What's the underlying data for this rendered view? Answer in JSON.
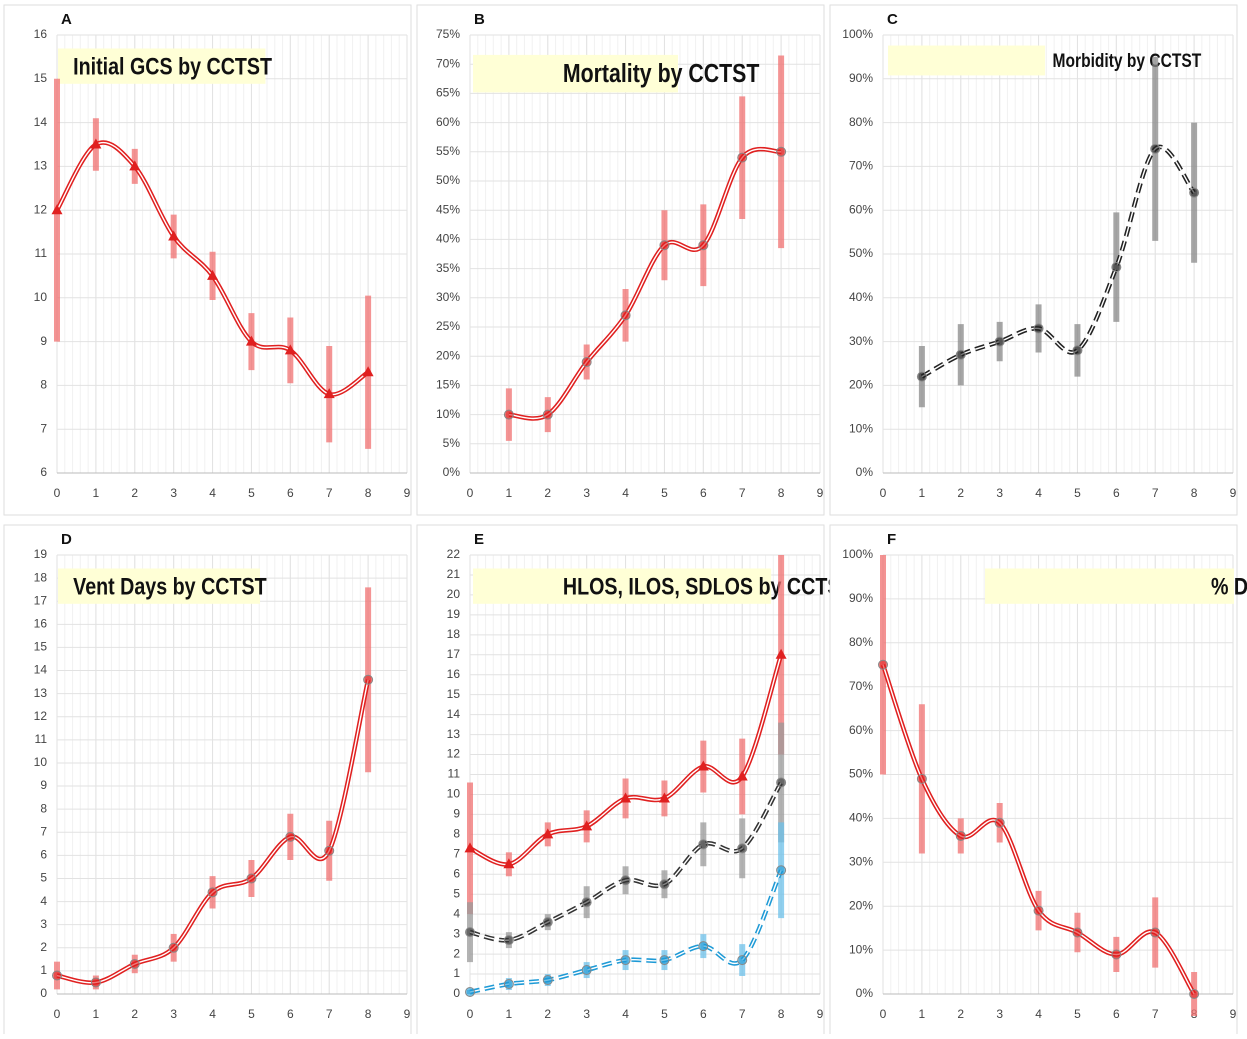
{
  "chart_data": [
    {
      "type": "line",
      "panel": "A",
      "title": "Initial GCS by CCTST",
      "grid": true,
      "x": [
        0,
        1,
        2,
        3,
        4,
        5,
        6,
        7,
        8
      ],
      "xlim": [
        0,
        9
      ],
      "xticks": [
        0,
        1,
        2,
        3,
        4,
        5,
        6,
        7,
        8,
        9
      ],
      "ylim": [
        6,
        16
      ],
      "yticks": [
        6,
        7,
        8,
        9,
        10,
        11,
        12,
        13,
        14,
        15,
        16
      ],
      "series": [
        {
          "color": "#e02020",
          "error_color": "#f07070",
          "marker": "triangle",
          "dash": false,
          "values": [
            12.0,
            13.5,
            13.0,
            11.4,
            10.5,
            9.0,
            8.8,
            7.8,
            8.3
          ],
          "errors": [
            3.0,
            0.6,
            0.4,
            0.5,
            0.55,
            0.65,
            0.75,
            1.1,
            1.75
          ]
        }
      ]
    },
    {
      "type": "line",
      "panel": "B",
      "title": "Mortality by CCTST",
      "grid": true,
      "x": [
        1,
        2,
        3,
        4,
        5,
        6,
        7,
        8
      ],
      "xlim": [
        0,
        9
      ],
      "xticks": [
        0,
        1,
        2,
        3,
        4,
        5,
        6,
        7,
        8,
        9
      ],
      "ylim": [
        0,
        75
      ],
      "yticks": [
        {
          "value": 0,
          "label": "0%"
        },
        {
          "value": 5,
          "label": "5%"
        },
        {
          "value": 10,
          "label": "10%"
        },
        {
          "value": 15,
          "label": "15%"
        },
        {
          "value": 20,
          "label": "20%"
        },
        {
          "value": 25,
          "label": "25%"
        },
        {
          "value": 30,
          "label": "30%"
        },
        {
          "value": 35,
          "label": "35%"
        },
        {
          "value": 40,
          "label": "40%"
        },
        {
          "value": 45,
          "label": "45%"
        },
        {
          "value": 50,
          "label": "50%"
        },
        {
          "value": 55,
          "label": "55%"
        },
        {
          "value": 60,
          "label": "60%"
        },
        {
          "value": 65,
          "label": "65%"
        },
        {
          "value": 70,
          "label": "70%"
        },
        {
          "value": 75,
          "label": "75%"
        }
      ],
      "series": [
        {
          "color": "#e02020",
          "error_color": "#f07070",
          "marker": "circle",
          "dash": false,
          "values": [
            10,
            10,
            19,
            27,
            39,
            39,
            54,
            55
          ],
          "errors": [
            4.5,
            3,
            3,
            4.5,
            6,
            7,
            10.5,
            16.5
          ]
        }
      ]
    },
    {
      "type": "line",
      "panel": "C",
      "title": "Morbidity by CCTST",
      "grid": true,
      "x": [
        1,
        2,
        3,
        4,
        5,
        6,
        7,
        8
      ],
      "xlim": [
        0,
        9
      ],
      "xticks": [
        0,
        1,
        2,
        3,
        4,
        5,
        6,
        7,
        8,
        9
      ],
      "ylim": [
        0,
        100
      ],
      "yticks": [
        {
          "value": 0,
          "label": "0%"
        },
        {
          "value": 10,
          "label": "10%"
        },
        {
          "value": 20,
          "label": "20%"
        },
        {
          "value": 30,
          "label": "30%"
        },
        {
          "value": 40,
          "label": "40%"
        },
        {
          "value": 50,
          "label": "50%"
        },
        {
          "value": 60,
          "label": "60%"
        },
        {
          "value": 70,
          "label": "70%"
        },
        {
          "value": 80,
          "label": "80%"
        },
        {
          "value": 90,
          "label": "90%"
        },
        {
          "value": 100,
          "label": "100%"
        }
      ],
      "series": [
        {
          "color": "#222222",
          "error_color": "#888888",
          "marker": "circle",
          "dash": true,
          "values": [
            22,
            27,
            30,
            33,
            28,
            47,
            74,
            64
          ],
          "errors": [
            7,
            7,
            4.5,
            5.5,
            6,
            12.5,
            21,
            16
          ]
        }
      ]
    },
    {
      "type": "line",
      "panel": "D",
      "title": "Vent Days by CCTST",
      "grid": true,
      "x": [
        0,
        1,
        2,
        3,
        4,
        5,
        6,
        7,
        8
      ],
      "xlim": [
        0,
        9
      ],
      "xticks": [
        0,
        1,
        2,
        3,
        4,
        5,
        6,
        7,
        8,
        9
      ],
      "ylim": [
        0,
        19
      ],
      "yticks": [
        0,
        1,
        2,
        3,
        4,
        5,
        6,
        7,
        8,
        9,
        10,
        11,
        12,
        13,
        14,
        15,
        16,
        17,
        18,
        19
      ],
      "series": [
        {
          "color": "#e02020",
          "error_color": "#f07070",
          "marker": "circle",
          "dash": false,
          "values": [
            0.8,
            0.5,
            1.3,
            2.0,
            4.4,
            5.0,
            6.8,
            6.2,
            13.6
          ],
          "errors": [
            0.6,
            0.3,
            0.4,
            0.6,
            0.7,
            0.8,
            1.0,
            1.3,
            4.0
          ]
        }
      ]
    },
    {
      "type": "line",
      "panel": "E",
      "title": "HLOS, ILOS, SDLOS by CCTST",
      "grid": true,
      "x": [
        0,
        1,
        2,
        3,
        4,
        5,
        6,
        7,
        8
      ],
      "xlim": [
        0,
        9
      ],
      "xticks": [
        0,
        1,
        2,
        3,
        4,
        5,
        6,
        7,
        8,
        9
      ],
      "ylim": [
        0,
        22
      ],
      "yticks": [
        0,
        1,
        2,
        3,
        4,
        5,
        6,
        7,
        8,
        9,
        10,
        11,
        12,
        13,
        14,
        15,
        16,
        17,
        18,
        19,
        20,
        21,
        22
      ],
      "series": [
        {
          "color": "#e02020",
          "error_color": "#f07070",
          "marker": "triangle",
          "dash": false,
          "values": [
            7.3,
            6.5,
            8.0,
            8.4,
            9.8,
            9.8,
            11.4,
            10.9,
            17.0
          ],
          "errors": [
            3.3,
            0.6,
            0.6,
            0.8,
            1.0,
            0.9,
            1.3,
            1.9,
            5.0
          ]
        },
        {
          "color": "#333333",
          "error_color": "#999999",
          "marker": "circle",
          "dash": true,
          "values": [
            3.1,
            2.7,
            3.6,
            4.6,
            5.7,
            5.5,
            7.5,
            7.3,
            10.6
          ],
          "errors": [
            1.5,
            0.4,
            0.4,
            0.8,
            0.7,
            0.7,
            1.1,
            1.5,
            3.0
          ]
        },
        {
          "color": "#1e9ad6",
          "error_color": "#6cc0ea",
          "marker": "circle",
          "dash": true,
          "values": [
            0.1,
            0.5,
            0.7,
            1.2,
            1.7,
            1.7,
            2.4,
            1.7,
            6.2
          ],
          "errors": [
            0.1,
            0.3,
            0.3,
            0.4,
            0.5,
            0.5,
            0.6,
            0.8,
            2.4
          ]
        }
      ]
    },
    {
      "type": "line",
      "panel": "F",
      "title": "% D/C to Home by CCTST",
      "grid": true,
      "x": [
        0,
        1,
        2,
        3,
        4,
        5,
        6,
        7,
        8
      ],
      "xlim": [
        0,
        9
      ],
      "xticks": [
        0,
        1,
        2,
        3,
        4,
        5,
        6,
        7,
        8,
        9
      ],
      "ylim": [
        0,
        100
      ],
      "yticks": [
        {
          "value": 0,
          "label": "0%"
        },
        {
          "value": 10,
          "label": "10%"
        },
        {
          "value": 20,
          "label": "20%"
        },
        {
          "value": 30,
          "label": "30%"
        },
        {
          "value": 40,
          "label": "40%"
        },
        {
          "value": 50,
          "label": "50%"
        },
        {
          "value": 60,
          "label": "60%"
        },
        {
          "value": 70,
          "label": "70%"
        },
        {
          "value": 80,
          "label": "80%"
        },
        {
          "value": 90,
          "label": "90%"
        },
        {
          "value": 100,
          "label": "100%"
        }
      ],
      "series": [
        {
          "color": "#e02020",
          "error_color": "#f07070",
          "marker": "circle",
          "dash": false,
          "values": [
            75,
            49,
            36,
            39,
            19,
            14,
            9,
            14,
            0
          ],
          "errors": [
            25,
            17,
            4,
            4.5,
            4.5,
            4.5,
            4,
            8,
            5
          ]
        }
      ]
    }
  ]
}
